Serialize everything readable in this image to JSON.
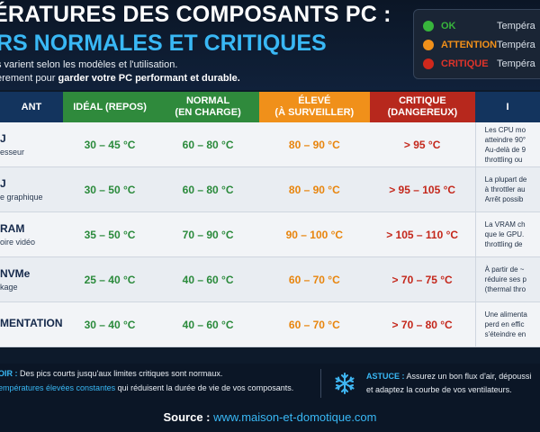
{
  "header": {
    "title_line1": "ÉRATURES DES COMPOSANTS PC :",
    "title_line2": "RS NORMALES ET CRITIQUES",
    "subtitle_line1": "s varient selon les modèles et l'utilisation.",
    "subtitle_line2_start": "èrement pour",
    "subtitle_line2_bold": "garder votre PC performant et durable."
  },
  "legend": [
    {
      "label": "OK",
      "desc": "Tempéra",
      "color": "#38b53c"
    },
    {
      "label": "ATTENTION",
      "desc": "Tempéra",
      "color": "#f0901a"
    },
    {
      "label": "CRITIQUE",
      "desc": "Tempéra",
      "color": "#d0281c"
    }
  ],
  "table": {
    "headers": [
      [
        "ANT",
        ""
      ],
      [
        "IDÉAL (REPOS)",
        ""
      ],
      [
        "NORMAL",
        "(EN CHARGE)"
      ],
      [
        "ÉLEVÉ",
        "(À SURVEILLER)"
      ],
      [
        "CRITIQUE",
        "(DANGEREUX)"
      ],
      [
        "I",
        ""
      ]
    ],
    "rows": [
      {
        "name": "J",
        "sub": "esseur",
        "ideal": "30 – 45 °C",
        "normal": "60 – 80 °C",
        "eleve": "80 – 90 °C",
        "critique": "> 95 °C",
        "notes": [
          "Les CPU mo",
          "atteindre 90°",
          "Au-delà de 9",
          "throttling ou"
        ]
      },
      {
        "name": "J",
        "sub": "e graphique",
        "ideal": "30 – 50 °C",
        "normal": "60 – 80 °C",
        "eleve": "80 – 90 °C",
        "critique": "> 95 – 105 °C",
        "notes": [
          "La plupart de",
          "à throttler au",
          "Arrêt possib"
        ]
      },
      {
        "name": "RAM",
        "sub": "oire vidéo",
        "ideal": "35 – 50 °C",
        "normal": "70 – 90 °C",
        "eleve": "90 – 100 °C",
        "critique": "> 105 – 110 °C",
        "notes": [
          "La VRAM ch",
          "que le GPU.",
          "throttling de"
        ]
      },
      {
        "name": "NVMe",
        "sub": "kage",
        "ideal": "25 – 40 °C",
        "normal": "40 – 60 °C",
        "eleve": "60 – 70 °C",
        "critique": "> 70 – 75 °C",
        "notes": [
          "À partir de ~",
          "réduire ses p",
          "(thermal thro"
        ]
      },
      {
        "name": "MENTATION",
        "sub": "",
        "ideal": "30 – 40 °C",
        "normal": "40 – 60 °C",
        "eleve": "60 – 70 °C",
        "critique": "> 70 – 80 °C",
        "notes": [
          "Une alimenta",
          "perd en effic",
          "s'éteindre en"
        ]
      }
    ]
  },
  "footer": {
    "line1_accent": "OIR :",
    "line1_text": "Des pics courts jusqu'aux limites critiques sont normaux.",
    "line2_accent": "empératures élevées constantes",
    "line2_text": "qui réduisent la durée de vie de vos composants.",
    "tip_label": "ASTUCE :",
    "tip_line1": "Assurez un bon flux d'air, dépoussi",
    "tip_line2": "et adaptez la courbe de vos ventilateurs.",
    "source_label": "Source :",
    "source_url": "www.maison-et-domotique.com"
  }
}
